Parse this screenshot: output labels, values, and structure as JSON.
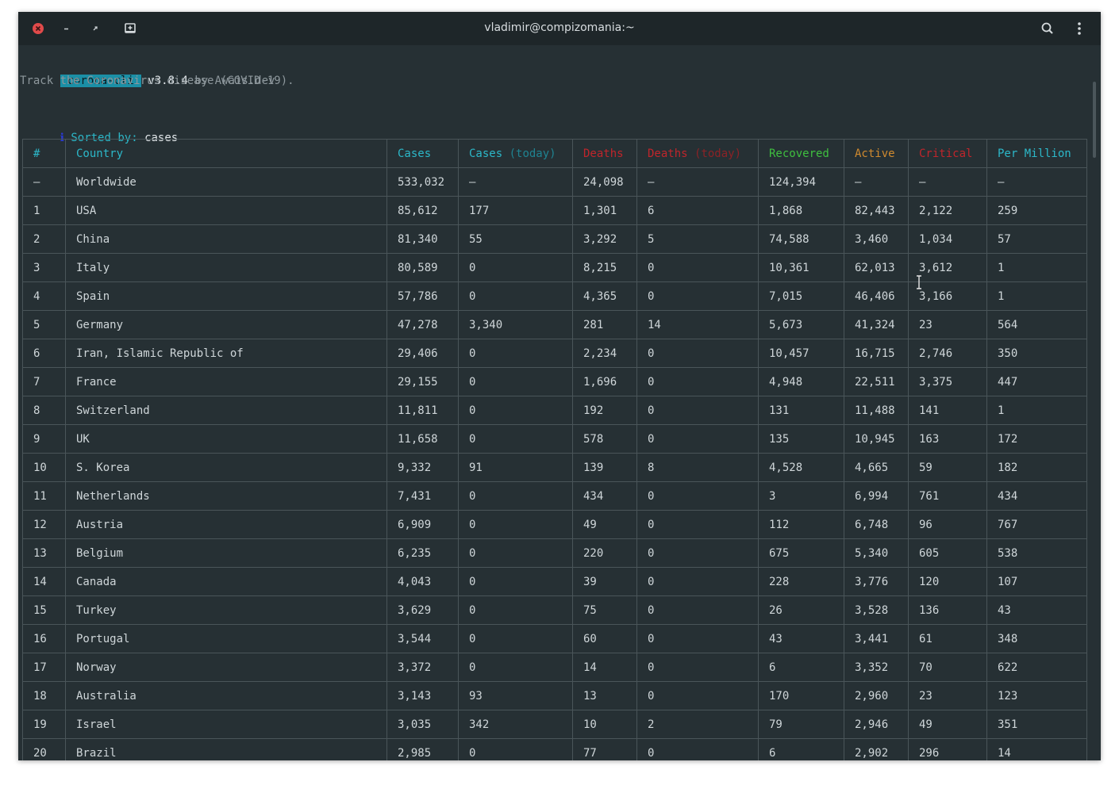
{
  "window": {
    "title": "vladimir@compizomania:~"
  },
  "header": {
    "badge": "corona-cli",
    "version": "v3.8.4",
    "by": "by Awais.dev",
    "tagline": "Track the Coronavirus disease (COVID-19)."
  },
  "sort": {
    "indicator": "ℹ",
    "label": "Sorted by:",
    "value": "cases"
  },
  "table": {
    "columns": [
      {
        "label": "#",
        "sub": ""
      },
      {
        "label": "Country",
        "sub": ""
      },
      {
        "label": "Cases",
        "sub": ""
      },
      {
        "label": "Cases",
        "sub": "(today)"
      },
      {
        "label": "Deaths",
        "sub": ""
      },
      {
        "label": "Deaths",
        "sub": "(today)"
      },
      {
        "label": "Recovered",
        "sub": ""
      },
      {
        "label": "Active",
        "sub": ""
      },
      {
        "label": "Critical",
        "sub": ""
      },
      {
        "label": "Per Million",
        "sub": ""
      }
    ],
    "rows": [
      [
        "—",
        "Worldwide",
        "533,032",
        "—",
        "24,098",
        "—",
        "124,394",
        "—",
        "—",
        "—"
      ],
      [
        "1",
        "USA",
        "85,612",
        "177",
        "1,301",
        "6",
        "1,868",
        "82,443",
        "2,122",
        "259"
      ],
      [
        "2",
        "China",
        "81,340",
        "55",
        "3,292",
        "5",
        "74,588",
        "3,460",
        "1,034",
        "57"
      ],
      [
        "3",
        "Italy",
        "80,589",
        "0",
        "8,215",
        "0",
        "10,361",
        "62,013",
        "3,612",
        "1"
      ],
      [
        "4",
        "Spain",
        "57,786",
        "0",
        "4,365",
        "0",
        "7,015",
        "46,406",
        "3,166",
        "1"
      ],
      [
        "5",
        "Germany",
        "47,278",
        "3,340",
        "281",
        "14",
        "5,673",
        "41,324",
        "23",
        "564"
      ],
      [
        "6",
        "Iran, Islamic Republic of",
        "29,406",
        "0",
        "2,234",
        "0",
        "10,457",
        "16,715",
        "2,746",
        "350"
      ],
      [
        "7",
        "France",
        "29,155",
        "0",
        "1,696",
        "0",
        "4,948",
        "22,511",
        "3,375",
        "447"
      ],
      [
        "8",
        "Switzerland",
        "11,811",
        "0",
        "192",
        "0",
        "131",
        "11,488",
        "141",
        "1"
      ],
      [
        "9",
        "UK",
        "11,658",
        "0",
        "578",
        "0",
        "135",
        "10,945",
        "163",
        "172"
      ],
      [
        "10",
        "S. Korea",
        "9,332",
        "91",
        "139",
        "8",
        "4,528",
        "4,665",
        "59",
        "182"
      ],
      [
        "11",
        "Netherlands",
        "7,431",
        "0",
        "434",
        "0",
        "3",
        "6,994",
        "761",
        "434"
      ],
      [
        "12",
        "Austria",
        "6,909",
        "0",
        "49",
        "0",
        "112",
        "6,748",
        "96",
        "767"
      ],
      [
        "13",
        "Belgium",
        "6,235",
        "0",
        "220",
        "0",
        "675",
        "5,340",
        "605",
        "538"
      ],
      [
        "14",
        "Canada",
        "4,043",
        "0",
        "39",
        "0",
        "228",
        "3,776",
        "120",
        "107"
      ],
      [
        "15",
        "Turkey",
        "3,629",
        "0",
        "75",
        "0",
        "26",
        "3,528",
        "136",
        "43"
      ],
      [
        "16",
        "Portugal",
        "3,544",
        "0",
        "60",
        "0",
        "43",
        "3,441",
        "61",
        "348"
      ],
      [
        "17",
        "Norway",
        "3,372",
        "0",
        "14",
        "0",
        "6",
        "3,352",
        "70",
        "622"
      ],
      [
        "18",
        "Australia",
        "3,143",
        "93",
        "13",
        "0",
        "170",
        "2,960",
        "23",
        "123"
      ],
      [
        "19",
        "Israel",
        "3,035",
        "342",
        "10",
        "2",
        "79",
        "2,946",
        "49",
        "351"
      ],
      [
        "20",
        "Brazil",
        "2,985",
        "0",
        "77",
        "0",
        "6",
        "2,902",
        "296",
        "14"
      ]
    ]
  },
  "icons": {
    "close": "close-icon",
    "minimize": "minimize-icon",
    "restore": "restore-icon",
    "new_tab": "new-tab-icon",
    "search": "search-icon",
    "menu": "menu-icon",
    "cursor": "text-cursor-icon"
  },
  "colors": {
    "terminal_bg": "#263034",
    "titlebar_bg": "#1e2629",
    "badge_bg": "#1b8fa6",
    "cyan": "#2cb8c9",
    "red": "#c0252b",
    "green": "#3fbf3f",
    "orange": "#d08a2f",
    "close_red": "#e04a4a"
  }
}
